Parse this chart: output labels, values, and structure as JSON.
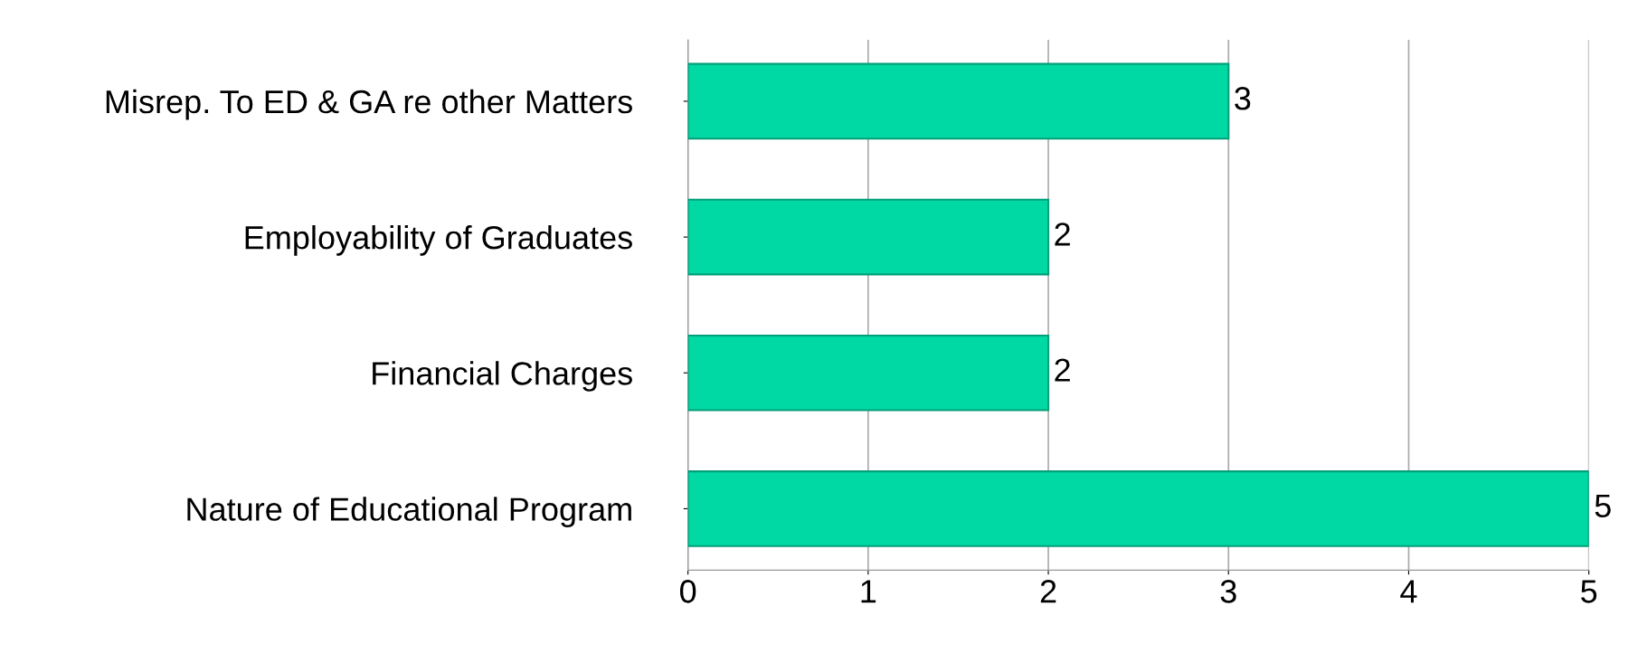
{
  "chart_data": {
    "type": "bar",
    "orientation": "horizontal",
    "categories": [
      "Misrep. To ED & GA re other Matters",
      "Employability of Graduates",
      "Financial Charges",
      "Nature of Educational Program"
    ],
    "values": [
      3,
      2,
      2,
      5
    ],
    "color": "#00d9a3",
    "xlim": [
      0,
      5
    ],
    "xticks": [
      0,
      1,
      2,
      3,
      4,
      5
    ],
    "grid": "x",
    "data_labels": true,
    "legend": false
  }
}
